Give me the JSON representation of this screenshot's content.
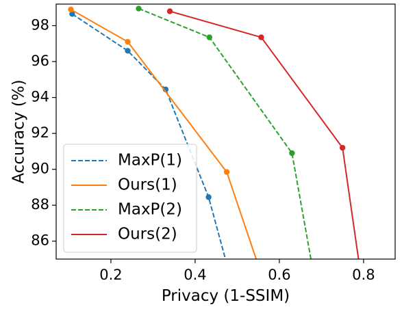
{
  "chart_data": {
    "type": "line",
    "xlabel": "Privacy (1-SSIM)",
    "ylabel": "Accuracy (%)",
    "xlim": [
      0.07,
      0.875
    ],
    "ylim": [
      85.0,
      99.2
    ],
    "xticks": [
      0.2,
      0.4,
      0.6,
      0.8
    ],
    "xtick_labels": [
      "0.2",
      "0.4",
      "0.6",
      "0.8"
    ],
    "yticks": [
      86,
      88,
      90,
      92,
      94,
      96,
      98
    ],
    "ytick_labels": [
      "86",
      "88",
      "90",
      "92",
      "94",
      "96",
      "98"
    ],
    "grid": false,
    "legend_position": "lower-left",
    "series": [
      {
        "name": "MaxP(1)",
        "color": "#1f77b4",
        "dashed": true,
        "x": [
          0.108,
          0.24,
          0.33,
          0.432,
          0.472
        ],
        "y": [
          98.65,
          96.6,
          94.45,
          88.45,
          85.0
        ],
        "marker": [
          true,
          true,
          true,
          true,
          false
        ]
      },
      {
        "name": "Ours(1)",
        "color": "#ff7f0e",
        "dashed": false,
        "x": [
          0.105,
          0.24,
          0.475,
          0.545
        ],
        "y": [
          98.9,
          97.1,
          89.85,
          85.0
        ],
        "marker": [
          true,
          true,
          true,
          false
        ]
      },
      {
        "name": "MaxP(2)",
        "color": "#2ca02c",
        "dashed": true,
        "x": [
          0.266,
          0.434,
          0.63,
          0.675
        ],
        "y": [
          98.95,
          97.35,
          90.9,
          85.0
        ],
        "marker": [
          true,
          true,
          true,
          false
        ]
      },
      {
        "name": "Ours(2)",
        "color": "#d62728",
        "dashed": false,
        "x": [
          0.34,
          0.557,
          0.75,
          0.788
        ],
        "y": [
          98.8,
          97.35,
          91.2,
          85.0
        ],
        "marker": [
          true,
          true,
          true,
          false
        ]
      }
    ]
  }
}
